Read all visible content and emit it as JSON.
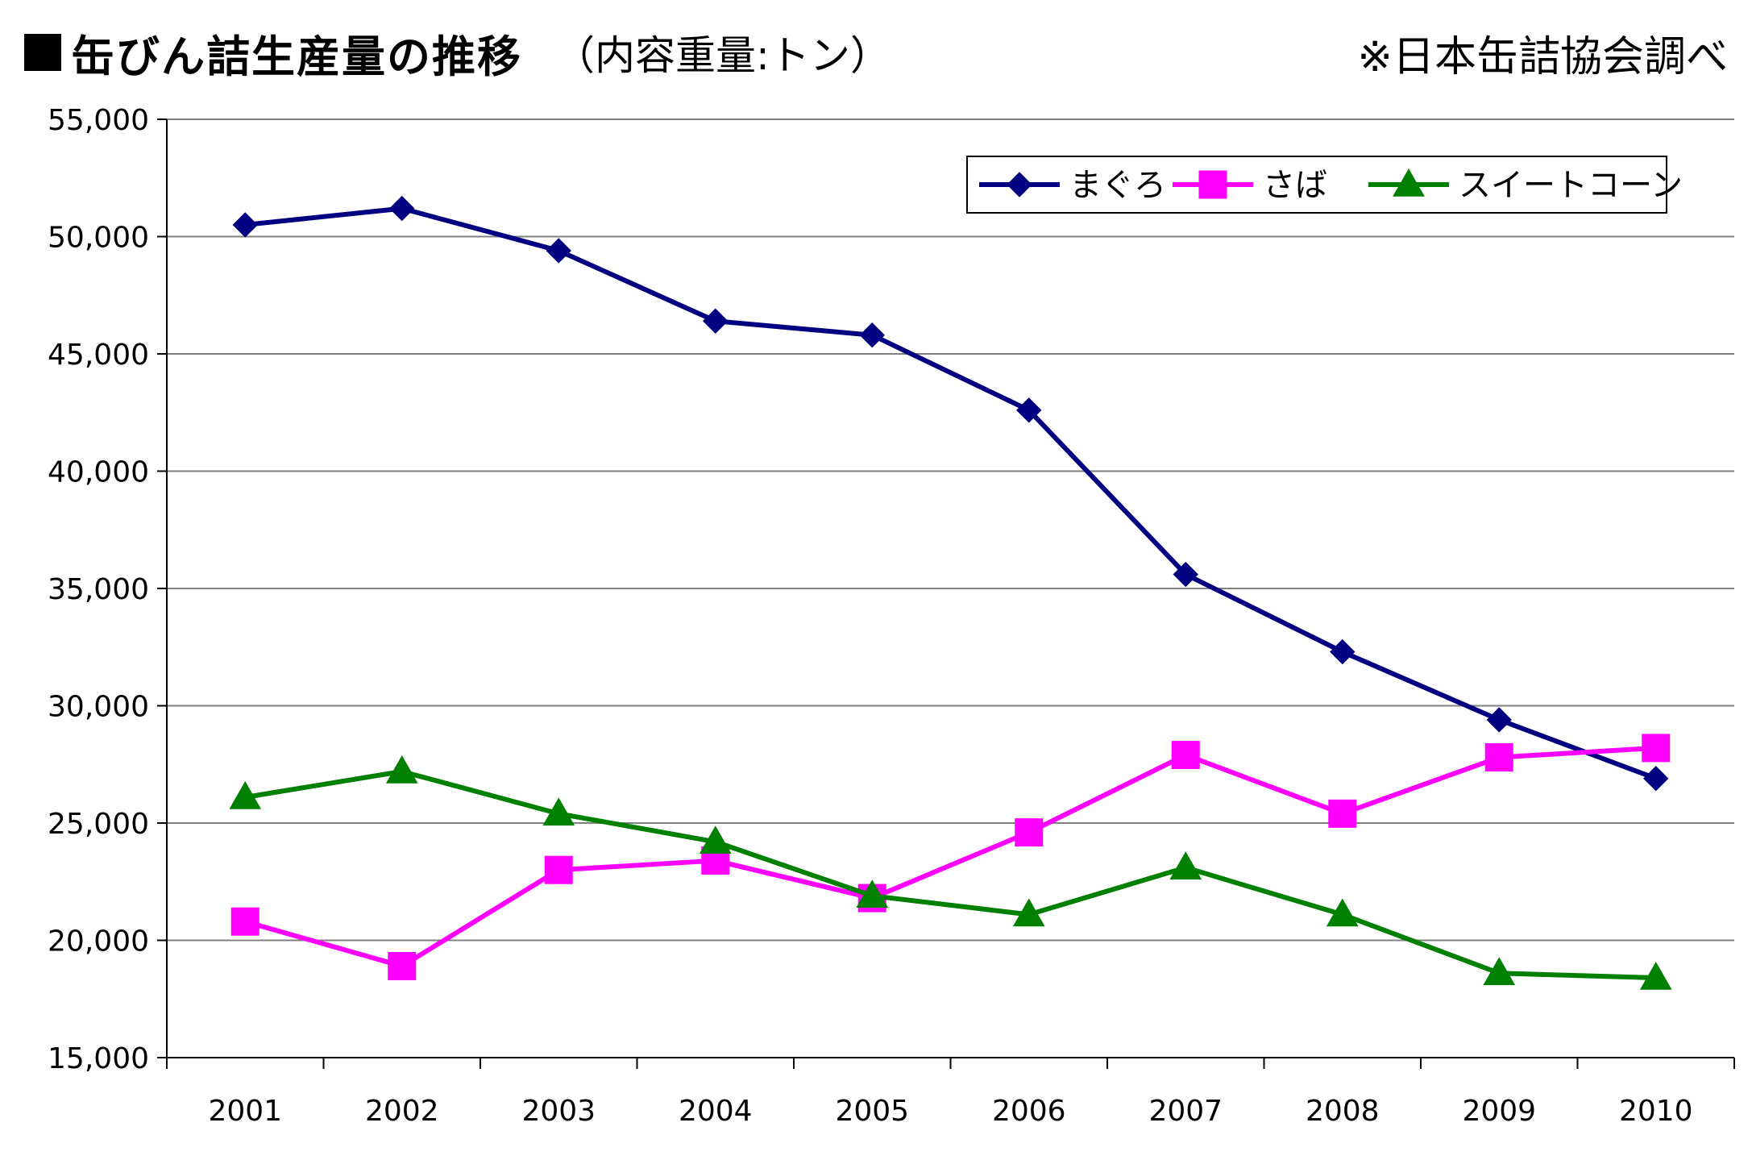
{
  "header": {
    "title": "缶びん詰生産量の推移",
    "unit": "（内容重量:トン）",
    "source": "※日本缶詰協会調べ"
  },
  "chart_data": {
    "type": "line",
    "title": "缶びん詰生産量の推移",
    "xlabel": "",
    "ylabel": "",
    "categories": [
      "2001",
      "2002",
      "2003",
      "2004",
      "2005",
      "2006",
      "2007",
      "2008",
      "2009",
      "2010"
    ],
    "ylim": [
      15000,
      55000
    ],
    "yticks": [
      15000,
      20000,
      25000,
      30000,
      35000,
      40000,
      45000,
      50000,
      55000
    ],
    "ytick_labels": [
      "15,000",
      "20,000",
      "25,000",
      "30,000",
      "35,000",
      "40,000",
      "45,000",
      "50,000",
      "55,000"
    ],
    "grid": "horizontal",
    "legend_position": "top-right",
    "series": [
      {
        "name": "まぐろ",
        "color": "#000080",
        "marker": "diamond",
        "values": [
          50500,
          51200,
          49400,
          46400,
          45800,
          42600,
          35600,
          32300,
          29400,
          26900
        ]
      },
      {
        "name": "さば",
        "color": "#FF00FF",
        "marker": "square",
        "values": [
          20800,
          18900,
          23000,
          23400,
          21800,
          24600,
          27900,
          25400,
          27800,
          28200
        ]
      },
      {
        "name": "スイートコーン",
        "color": "#008000",
        "marker": "triangle",
        "values": [
          26100,
          27200,
          25400,
          24200,
          21900,
          21100,
          23100,
          21100,
          18600,
          18400
        ]
      }
    ]
  }
}
